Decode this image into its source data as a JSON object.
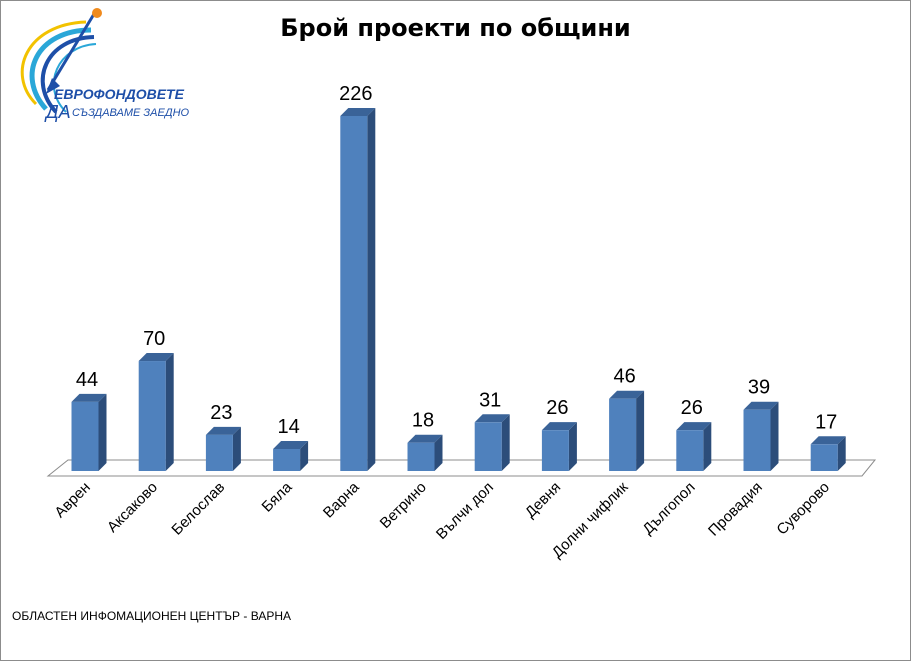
{
  "title": "Брой проекти по общини",
  "footer": "ОБЛАСТЕН ИНФОМАЦИОНЕН ЦЕНТЪР - ВАРНА",
  "logo": {
    "line1": "ЕВРОФОНДОВЕТЕ",
    "line2_da": "ДА",
    "line2_rest": "СЪЗДАВАМЕ ЗАЕДНО",
    "colors": {
      "blue": "#1e4fa8",
      "cyan": "#2aa7d8",
      "yellow": "#f2c200",
      "orange": "#f08a1c"
    }
  },
  "colors": {
    "bar_front": "#4f81bd",
    "bar_side": "#2c4d7a",
    "bar_top": "#3a6398",
    "floor": "#8c8c8c"
  },
  "chart_data": {
    "type": "bar",
    "title": "Брой проекти по общини",
    "categories": [
      "Аврен",
      "Аксаково",
      "Белослав",
      "Бяла",
      "Варна",
      "Ветрино",
      "Вълчи дол",
      "Девня",
      "Долни чифлик",
      "Дългопол",
      "Провадия",
      "Суворово"
    ],
    "values": [
      44,
      70,
      23,
      14,
      226,
      18,
      31,
      26,
      46,
      26,
      39,
      17
    ],
    "ylim": [
      0,
      226
    ],
    "grid": false,
    "legend": "none",
    "data_labels": true,
    "style": "3d-column"
  }
}
